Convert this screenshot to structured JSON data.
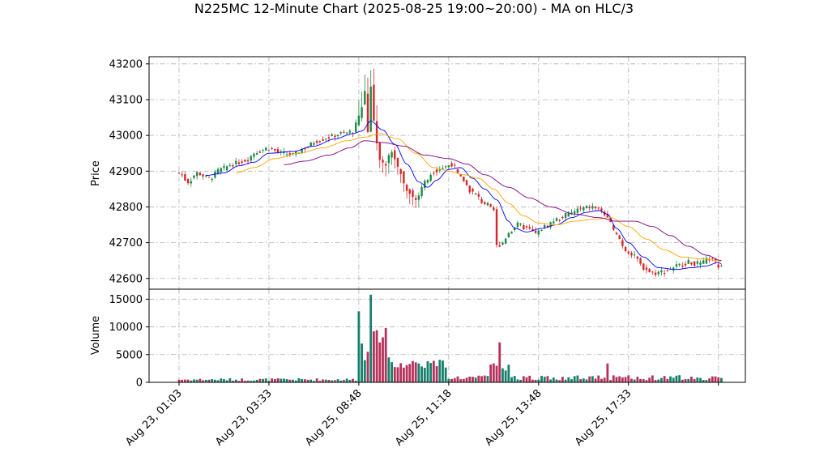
{
  "chart_data": {
    "type": "candlestick",
    "title": "N225MC 12-Minute Chart (2025-08-25 19:00~20:00) - MA on HLC/3",
    "price_panel": {
      "ylabel": "Price",
      "ylim": [
        42570,
        43220
      ],
      "yticks": [
        42600,
        42700,
        42800,
        42900,
        43000,
        43100,
        43200
      ],
      "grid": true
    },
    "volume_panel": {
      "ylabel": "Volume",
      "ylim": [
        0,
        16800
      ],
      "yticks": [
        0,
        5000,
        10000,
        15000
      ],
      "grid": true
    },
    "x_ticks": [
      {
        "index": 0,
        "label": "Aug 23, 01:03"
      },
      {
        "index": 30,
        "label": "Aug 23, 03:33"
      },
      {
        "index": 60,
        "label": "Aug 25, 08:48"
      },
      {
        "index": 90,
        "label": "Aug 25, 11:18"
      },
      {
        "index": 120,
        "label": "Aug 25, 13:48"
      },
      {
        "index": 150,
        "label": "Aug 25, 17:33"
      },
      {
        "index": 180,
        "label": ""
      }
    ],
    "x_range": [
      -10,
      189
    ],
    "colors": {
      "up": "#1e8a46",
      "down": "#d62728",
      "vol_up": "#17806d",
      "vol_down": "#b5305a",
      "ma_short": "#0000ff",
      "ma_mid": "#ffa500",
      "ma_long": "#800080"
    },
    "series": [
      {
        "name": "",
        "color_key": "ma_short",
        "start": 9,
        "anchors": [
          [
            9,
            42888
          ],
          [
            15,
            42895
          ],
          [
            20,
            42915
          ],
          [
            25,
            42925
          ],
          [
            30,
            42950
          ],
          [
            38,
            42955
          ],
          [
            45,
            42970
          ],
          [
            52,
            42990
          ],
          [
            58,
            43005
          ],
          [
            61,
            43012
          ],
          [
            64,
            43040
          ],
          [
            68,
            43015
          ],
          [
            72,
            42975
          ],
          [
            76,
            42920
          ],
          [
            80,
            42870
          ],
          [
            83,
            42855
          ],
          [
            86,
            42875
          ],
          [
            90,
            42905
          ],
          [
            94,
            42910
          ],
          [
            98,
            42880
          ],
          [
            102,
            42850
          ],
          [
            106,
            42820
          ],
          [
            110,
            42760
          ],
          [
            112,
            42740
          ],
          [
            116,
            42730
          ],
          [
            121,
            42740
          ],
          [
            126,
            42750
          ],
          [
            131,
            42770
          ],
          [
            136,
            42785
          ],
          [
            140,
            42790
          ],
          [
            143,
            42780
          ],
          [
            146,
            42740
          ],
          [
            150,
            42700
          ],
          [
            155,
            42660
          ],
          [
            160,
            42630
          ],
          [
            166,
            42625
          ],
          [
            171,
            42630
          ],
          [
            176,
            42635
          ],
          [
            180,
            42645
          ],
          [
            181,
            42640
          ]
        ]
      },
      {
        "name": "",
        "color_key": "ma_mid",
        "start": 19,
        "anchors": [
          [
            19,
            42895
          ],
          [
            25,
            42910
          ],
          [
            32,
            42935
          ],
          [
            40,
            42950
          ],
          [
            48,
            42965
          ],
          [
            56,
            42985
          ],
          [
            62,
            42995
          ],
          [
            67,
            43005
          ],
          [
            73,
            42990
          ],
          [
            79,
            42950
          ],
          [
            85,
            42910
          ],
          [
            90,
            42900
          ],
          [
            95,
            42890
          ],
          [
            100,
            42880
          ],
          [
            105,
            42850
          ],
          [
            110,
            42810
          ],
          [
            115,
            42775
          ],
          [
            120,
            42755
          ],
          [
            126,
            42750
          ],
          [
            132,
            42760
          ],
          [
            138,
            42765
          ],
          [
            144,
            42770
          ],
          [
            150,
            42745
          ],
          [
            156,
            42710
          ],
          [
            162,
            42680
          ],
          [
            168,
            42660
          ],
          [
            174,
            42655
          ],
          [
            180,
            42650
          ],
          [
            181,
            42648
          ]
        ]
      },
      {
        "name": "",
        "color_key": "ma_long",
        "start": 35,
        "anchors": [
          [
            35,
            42918
          ],
          [
            42,
            42928
          ],
          [
            50,
            42945
          ],
          [
            57,
            42965
          ],
          [
            62,
            42985
          ],
          [
            68,
            42980
          ],
          [
            75,
            42970
          ],
          [
            82,
            42945
          ],
          [
            90,
            42935
          ],
          [
            96,
            42920
          ],
          [
            102,
            42890
          ],
          [
            110,
            42855
          ],
          [
            117,
            42825
          ],
          [
            124,
            42800
          ],
          [
            132,
            42780
          ],
          [
            140,
            42770
          ],
          [
            146,
            42760
          ],
          [
            152,
            42760
          ],
          [
            158,
            42745
          ],
          [
            164,
            42720
          ],
          [
            170,
            42690
          ],
          [
            176,
            42665
          ],
          [
            181,
            42650
          ]
        ]
      }
    ]
  }
}
